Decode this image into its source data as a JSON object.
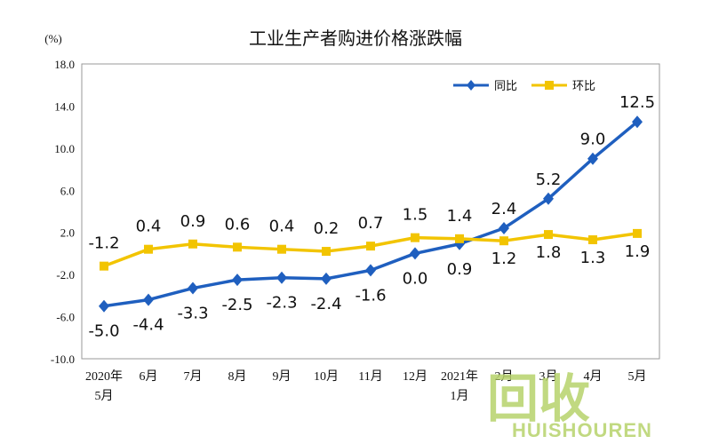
{
  "chart_data": {
    "type": "line",
    "title": "工业生产者购进价格涨跌幅",
    "unit_label": "(%)",
    "categories": [
      [
        "2020年",
        "5月"
      ],
      [
        "6月"
      ],
      [
        "7月"
      ],
      [
        "8月"
      ],
      [
        "9月"
      ],
      [
        "10月"
      ],
      [
        "11月"
      ],
      [
        "12月"
      ],
      [
        "2021年",
        "1月"
      ],
      [
        "2月"
      ],
      [
        "3月"
      ],
      [
        "4月"
      ],
      [
        "5月"
      ]
    ],
    "yticks": [
      "18.0",
      "14.0",
      "10.0",
      "6.0",
      "2.0",
      "-2.0",
      "-6.0",
      "-10.0"
    ],
    "ylim": [
      -10,
      18
    ],
    "grid": false,
    "legend_position": "top-right",
    "series": [
      {
        "name": "同比",
        "color": "#1f5fbf",
        "marker": "diamond",
        "values": [
          -5.0,
          -4.4,
          -3.3,
          -2.5,
          -2.3,
          -2.4,
          -1.6,
          0.0,
          0.9,
          2.4,
          5.2,
          9.0,
          12.5
        ],
        "labels": [
          "-5.0",
          "-4.4",
          "-3.3",
          "-2.5",
          "-2.3",
          "-2.4",
          "-1.6",
          "0.0",
          "0.9",
          "2.4",
          "5.2",
          "9.0",
          "12.5"
        ]
      },
      {
        "name": "环比",
        "color": "#f2c400",
        "marker": "square",
        "values": [
          -1.2,
          0.4,
          0.9,
          0.6,
          0.4,
          0.2,
          0.7,
          1.5,
          1.4,
          1.2,
          1.8,
          1.3,
          1.9
        ],
        "labels": [
          "-1.2",
          "0.4",
          "0.9",
          "0.6",
          "0.4",
          "0.2",
          "0.7",
          "1.5",
          "1.4",
          "1.2",
          "1.8",
          "1.3",
          "1.9"
        ]
      }
    ]
  },
  "watermark": {
    "main": "回收",
    "sub": "HUISHOUREN",
    "color": "#b7d36c"
  }
}
